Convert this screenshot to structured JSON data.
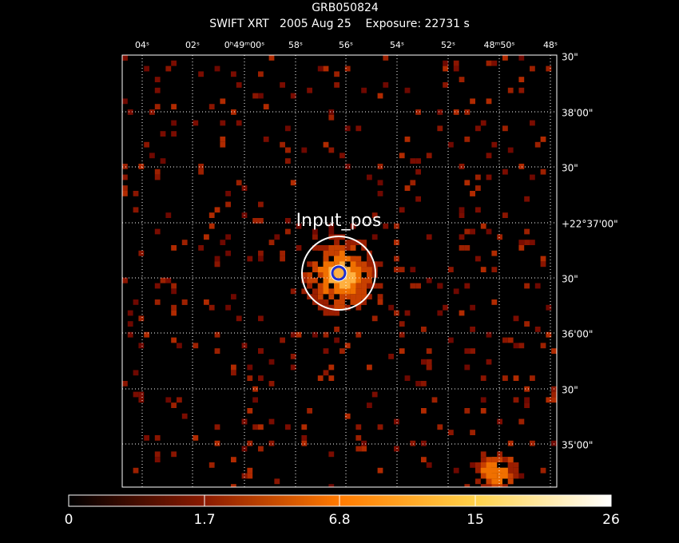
{
  "header": {
    "title": "GRB050824",
    "subtitle": "SWIFT XRT   2005 Aug 25    Exposure: 22731 s"
  },
  "axes": {
    "top_labels": [
      "04ˢ",
      "02ˢ",
      "0ʰ49ᵐ00ˢ",
      "58ˢ",
      "56ˢ",
      "54ˢ",
      "52ˢ",
      "48ᵐ50ˢ",
      "48ˢ"
    ],
    "right_labels": [
      "30\"",
      "38'00\"",
      "30\"",
      "+22°37'00\"",
      "30\"",
      "36'00\"",
      "30\"",
      "35'00\""
    ]
  },
  "annotation": "Input_pos",
  "colorbar": {
    "labels": [
      "0",
      "1.7",
      "6.8",
      "15",
      "26"
    ]
  }
}
